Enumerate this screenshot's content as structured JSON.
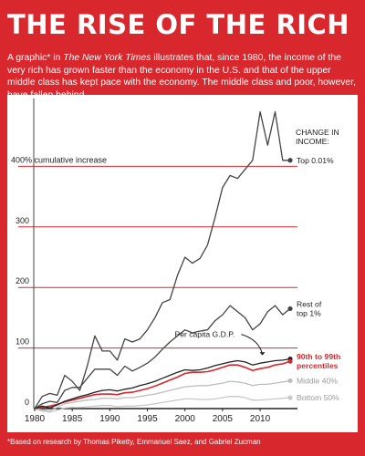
{
  "title": "THE RISE OF THE RICH",
  "intro": {
    "part1": "A graphic* in ",
    "source_italic": "The New York Times",
    "part2": " illustrates that, since 1980, the income of the very rich has grown faster than the economy in the U.S. and that of the upper middle class has kept pace with the economy. The middle class and poor, however, have fallen behind."
  },
  "footnote": "*Based on research by Thomas Piketty, Emmanuel Saez, and Gabriel Zucman",
  "colors": {
    "background": "#d8282e",
    "panel": "#ffffff",
    "red": "#d8282e",
    "dark": "#222222",
    "gray": "#444444",
    "mid_gray": "#bdbdbd",
    "light_gray": "#c9c9c9"
  },
  "chart_data": {
    "type": "line",
    "title": "",
    "xlabel": "",
    "ylabel": "",
    "xlim": [
      1980,
      2014
    ],
    "ylim": [
      0,
      500
    ],
    "x_ticks": [
      "1980",
      "1985",
      "1990",
      "1995",
      "2000",
      "2005",
      "2010"
    ],
    "y_ticks": [
      {
        "value": 0,
        "label": "0"
      },
      {
        "value": 100,
        "label": "100"
      },
      {
        "value": 200,
        "label": "200"
      },
      {
        "value": 300,
        "label": "300"
      },
      {
        "value": 400,
        "label": "400% cumulative increase"
      }
    ],
    "legend_title": [
      "CHANGE IN",
      "INCOME:"
    ],
    "series": [
      {
        "name": "Top 0.01%",
        "label_lines": [
          "Top 0.01%"
        ],
        "color": "#444444",
        "x": [
          1980,
          1981,
          1982,
          1983,
          1984,
          1985,
          1986,
          1987,
          1988,
          1989,
          1990,
          1991,
          1992,
          1993,
          1994,
          1995,
          1996,
          1997,
          1998,
          1999,
          2000,
          2001,
          2002,
          2003,
          2004,
          2005,
          2006,
          2007,
          2008,
          2009,
          2010,
          2011,
          2012,
          2013,
          2014
        ],
        "values": [
          0,
          20,
          25,
          22,
          55,
          45,
          30,
          70,
          120,
          95,
          95,
          80,
          115,
          110,
          115,
          130,
          150,
          175,
          180,
          220,
          250,
          240,
          248,
          270,
          315,
          365,
          385,
          380,
          395,
          410,
          490,
          435,
          490,
          410,
          410
        ]
      },
      {
        "name": "Rest of top 1%",
        "label_lines": [
          "Rest of",
          "top 1%"
        ],
        "color": "#444444",
        "x": [
          1980,
          1981,
          1982,
          1983,
          1984,
          1985,
          1986,
          1987,
          1988,
          1989,
          1990,
          1991,
          1992,
          1993,
          1994,
          1995,
          1996,
          1997,
          1998,
          1999,
          2000,
          2001,
          2002,
          2003,
          2004,
          2005,
          2006,
          2007,
          2008,
          2009,
          2010,
          2011,
          2012,
          2013,
          2014
        ],
        "values": [
          0,
          8,
          12,
          10,
          30,
          35,
          35,
          50,
          65,
          65,
          65,
          55,
          70,
          62,
          68,
          75,
          85,
          98,
          110,
          120,
          130,
          125,
          128,
          130,
          145,
          155,
          170,
          160,
          150,
          130,
          140,
          160,
          170,
          155,
          165
        ]
      },
      {
        "name": "Per capita G.D.P.",
        "label_lines": [
          "Per capita G.D.P."
        ],
        "color": "#222222",
        "x": [
          1980,
          1981,
          1982,
          1983,
          1984,
          1985,
          1986,
          1987,
          1988,
          1989,
          1990,
          1991,
          1992,
          1993,
          1994,
          1995,
          1996,
          1997,
          1998,
          1999,
          2000,
          2001,
          2002,
          2003,
          2004,
          2005,
          2006,
          2007,
          2008,
          2009,
          2010,
          2011,
          2012,
          2013,
          2014
        ],
        "values": [
          0,
          4,
          1,
          6,
          12,
          16,
          20,
          23,
          27,
          30,
          31,
          29,
          32,
          34,
          38,
          41,
          45,
          50,
          55,
          60,
          64,
          63,
          64,
          67,
          71,
          74,
          77,
          79,
          77,
          72,
          75,
          77,
          79,
          80,
          82
        ]
      },
      {
        "name": "90th to 99th percentiles",
        "label_lines": [
          "90th to 99th",
          "percentiles"
        ],
        "color": "#d8282e",
        "x": [
          1980,
          1981,
          1982,
          1983,
          1984,
          1985,
          1986,
          1987,
          1988,
          1989,
          1990,
          1991,
          1992,
          1993,
          1994,
          1995,
          1996,
          1997,
          1998,
          1999,
          2000,
          2001,
          2002,
          2003,
          2004,
          2005,
          2006,
          2007,
          2008,
          2009,
          2010,
          2011,
          2012,
          2013,
          2014
        ],
        "values": [
          0,
          2,
          4,
          7,
          11,
          14,
          17,
          20,
          23,
          24,
          24,
          23,
          26,
          27,
          30,
          33,
          37,
          42,
          47,
          52,
          58,
          60,
          60,
          61,
          64,
          68,
          72,
          72,
          68,
          63,
          66,
          68,
          72,
          74,
          78
        ]
      },
      {
        "name": "Middle 40%",
        "label_lines": [
          "Middle 40%"
        ],
        "color": "#bdbdbd",
        "x": [
          1980,
          1981,
          1982,
          1983,
          1984,
          1985,
          1986,
          1987,
          1988,
          1989,
          1990,
          1991,
          1992,
          1993,
          1994,
          1995,
          1996,
          1997,
          1998,
          1999,
          2000,
          2001,
          2002,
          2003,
          2004,
          2005,
          2006,
          2007,
          2008,
          2009,
          2010,
          2011,
          2012,
          2013,
          2014
        ],
        "values": [
          0,
          -2,
          -4,
          2,
          8,
          10,
          12,
          14,
          15,
          17,
          17,
          16,
          18,
          18,
          20,
          22,
          24,
          27,
          30,
          33,
          36,
          37,
          38,
          38,
          40,
          42,
          45,
          44,
          42,
          38,
          40,
          40,
          42,
          44,
          46
        ]
      },
      {
        "name": "Bottom 50%",
        "label_lines": [
          "Bottom 50%"
        ],
        "color": "#c9c9c9",
        "x": [
          1980,
          1981,
          1982,
          1983,
          1984,
          1985,
          1986,
          1987,
          1988,
          1989,
          1990,
          1991,
          1992,
          1993,
          1994,
          1995,
          1996,
          1997,
          1998,
          1999,
          2000,
          2001,
          2002,
          2003,
          2004,
          2005,
          2006,
          2007,
          2008,
          2009,
          2010,
          2011,
          2012,
          2013,
          2014
        ],
        "values": [
          0,
          -4,
          -6,
          -3,
          1,
          2,
          2,
          3,
          4,
          5,
          5,
          3,
          4,
          4,
          5,
          6,
          8,
          10,
          12,
          14,
          16,
          16,
          15,
          15,
          16,
          18,
          20,
          20,
          18,
          14,
          14,
          15,
          16,
          17,
          18
        ]
      }
    ]
  }
}
